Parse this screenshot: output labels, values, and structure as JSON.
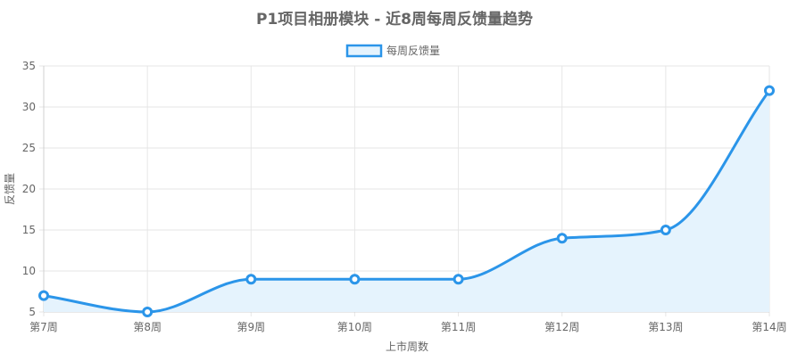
{
  "chart_data": {
    "type": "line",
    "title": "P1项目相册模块 - 近8周每周反馈量趋势",
    "xlabel": "上市周数",
    "ylabel": "反馈量",
    "categories": [
      "第7周",
      "第8周",
      "第9周",
      "第10周",
      "第11周",
      "第12周",
      "第13周",
      "第14周"
    ],
    "series": [
      {
        "name": "每周反馈量",
        "values": [
          7,
          5,
          9,
          9,
          9,
          14,
          15,
          32
        ]
      }
    ],
    "ylim": [
      5,
      35
    ],
    "yticks": [
      5,
      10,
      15,
      20,
      25,
      30,
      35
    ],
    "grid": true,
    "fill": true,
    "legend_position": "top-center",
    "colors": {
      "line": "#2b95e9",
      "fill": "#e5f3fd",
      "grid": "#e6e6e6",
      "text": "#666666"
    }
  }
}
